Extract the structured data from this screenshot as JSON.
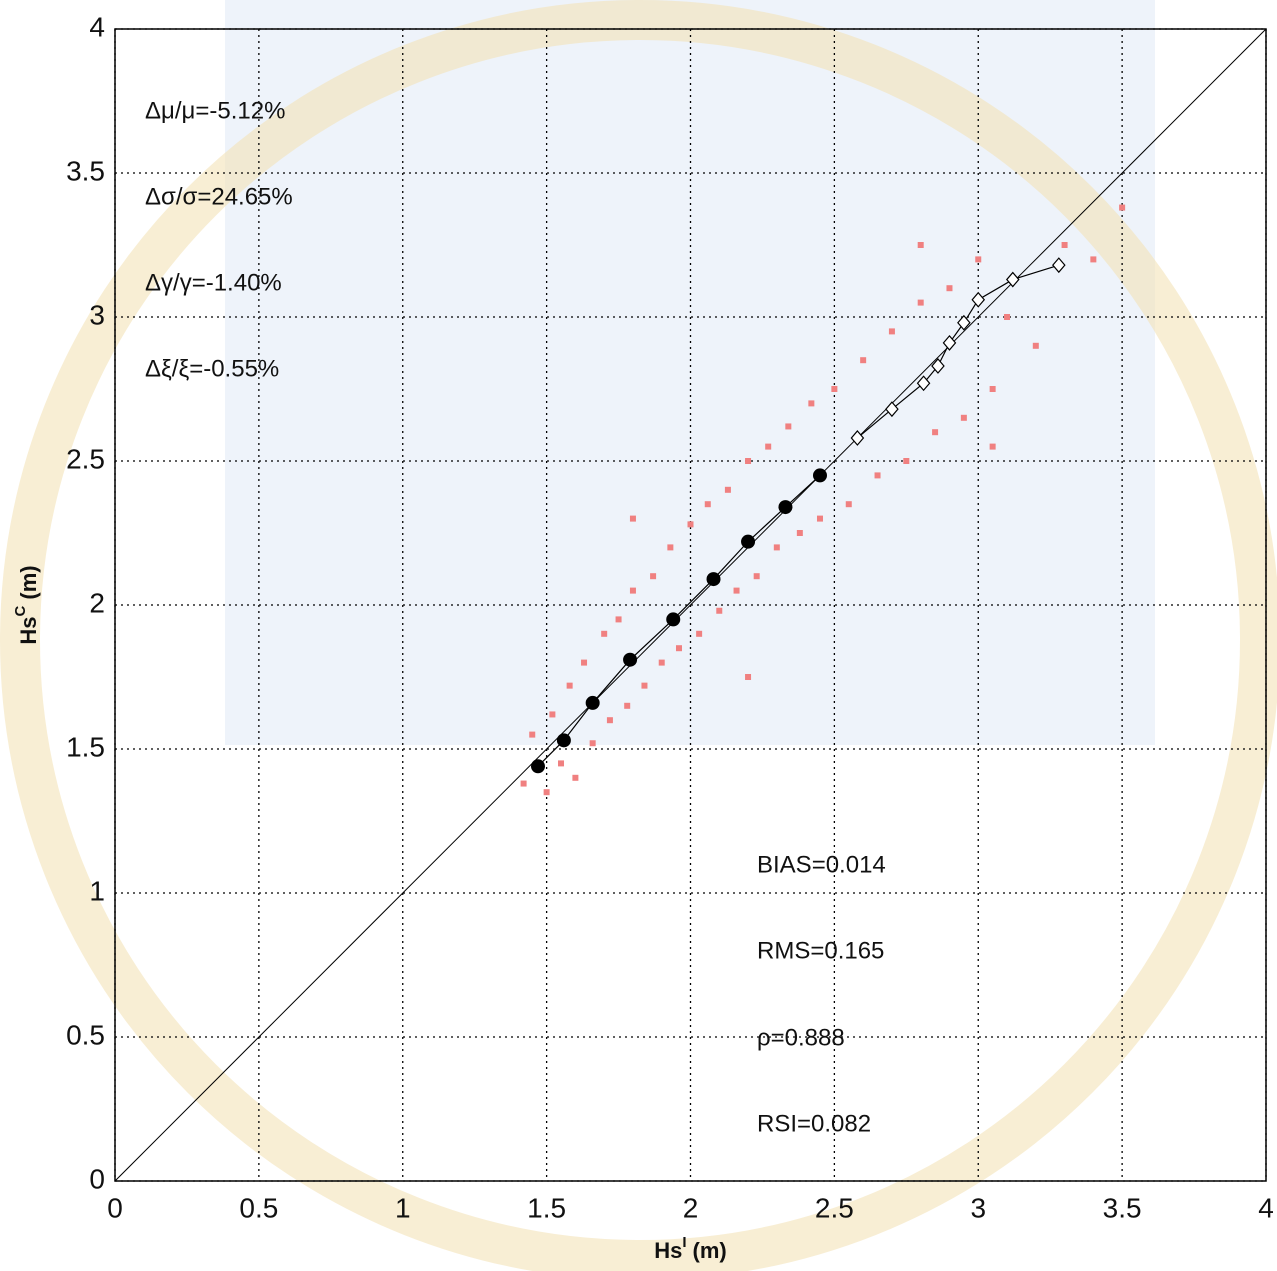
{
  "chart_data": {
    "type": "scatter",
    "xlabel": "Hs",
    "xlabel_sup": "I",
    "xlabel_unit": "(m)",
    "ylabel": "Hs",
    "ylabel_sup": "C",
    "ylabel_unit": "(m)",
    "xlim": [
      0,
      4
    ],
    "ylim": [
      0,
      4
    ],
    "xticks": [
      0,
      0.5,
      1,
      1.5,
      2,
      2.5,
      3,
      3.5,
      4
    ],
    "yticks": [
      0,
      0.5,
      1,
      1.5,
      2,
      2.5,
      3,
      3.5,
      4
    ],
    "grid": true,
    "annotations": [
      "Δμ/μ=-5.12%",
      "Δσ/σ=24.65%",
      "Δγ/γ=-1.40%",
      "Δξ/ξ=-0.55%",
      "BIAS=0.014",
      "RMS=0.165",
      "ρ=0.888",
      "RSI=0.082"
    ],
    "series": [
      {
        "color": "#f08080",
        "marker": "point",
        "x": [
          1.42,
          1.45,
          1.5,
          1.52,
          1.55,
          1.58,
          1.6,
          1.63,
          1.66,
          1.7,
          1.72,
          1.75,
          1.78,
          1.8,
          1.84,
          1.87,
          1.9,
          1.93,
          1.96,
          2.0,
          2.03,
          2.06,
          2.1,
          2.13,
          2.16,
          2.2,
          2.23,
          2.27,
          2.3,
          2.34,
          2.38,
          2.42,
          2.45,
          2.5,
          2.55,
          2.6,
          2.65,
          2.7,
          2.75,
          2.8,
          2.85,
          2.9,
          2.95,
          3.0,
          3.05,
          3.1,
          3.2,
          3.3,
          3.4,
          3.5,
          2.8,
          3.05,
          1.8,
          2.2
        ],
        "values": [
          1.38,
          1.55,
          1.35,
          1.62,
          1.45,
          1.72,
          1.4,
          1.8,
          1.52,
          1.9,
          1.6,
          1.95,
          1.65,
          2.05,
          1.72,
          2.1,
          1.8,
          2.2,
          1.85,
          2.28,
          1.9,
          2.35,
          1.98,
          2.4,
          2.05,
          2.5,
          2.1,
          2.55,
          2.2,
          2.62,
          2.25,
          2.7,
          2.3,
          2.75,
          2.35,
          2.85,
          2.45,
          2.95,
          2.5,
          3.05,
          2.6,
          3.1,
          2.65,
          3.2,
          2.75,
          3.0,
          2.9,
          3.25,
          3.2,
          3.38,
          3.25,
          2.55,
          2.3,
          1.75
        ]
      },
      {
        "color": "#000000",
        "marker": "filled-circle",
        "x": [
          1.47,
          1.56,
          1.66,
          1.79,
          1.94,
          2.08,
          2.2,
          2.33,
          2.45
        ],
        "values": [
          1.44,
          1.53,
          1.66,
          1.81,
          1.95,
          2.09,
          2.22,
          2.34,
          2.45
        ]
      },
      {
        "color": "#000000",
        "marker": "open-diamond",
        "x": [
          2.58,
          2.7,
          2.81,
          2.86,
          2.9,
          2.95,
          3.0,
          3.12,
          3.28
        ],
        "values": [
          2.58,
          2.68,
          2.77,
          2.83,
          2.91,
          2.98,
          3.06,
          3.13,
          3.18
        ]
      }
    ]
  }
}
